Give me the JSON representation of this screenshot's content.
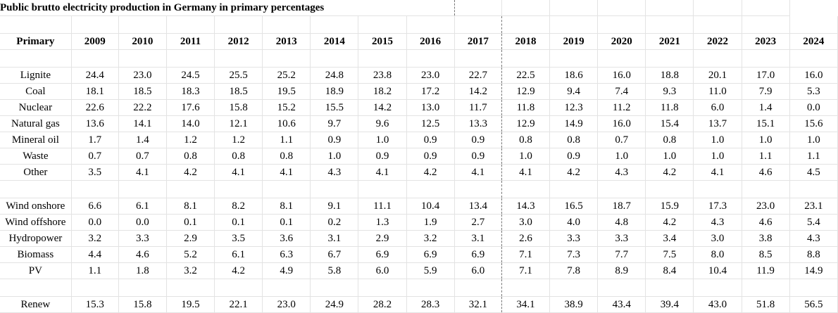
{
  "title": "Public brutto electricity production in Germany in primary percentages",
  "header": {
    "label": "Primary",
    "years": [
      "2009",
      "2010",
      "2011",
      "2012",
      "2013",
      "2014",
      "2015",
      "2016",
      "2017",
      "2018",
      "2019",
      "2020",
      "2021",
      "2022",
      "2023",
      "2024"
    ]
  },
  "group1": [
    {
      "label": "Lignite",
      "values": [
        "24.4",
        "23.0",
        "24.5",
        "25.5",
        "25.2",
        "24.8",
        "23.8",
        "23.0",
        "22.7",
        "22.5",
        "18.6",
        "16.0",
        "18.8",
        "20.1",
        "17.0",
        "16.0"
      ]
    },
    {
      "label": "Coal",
      "values": [
        "18.1",
        "18.5",
        "18.3",
        "18.5",
        "19.5",
        "18.9",
        "18.2",
        "17.2",
        "14.2",
        "12.9",
        "9.4",
        "7.4",
        "9.3",
        "11.0",
        "7.9",
        "5.3"
      ]
    },
    {
      "label": "Nuclear",
      "values": [
        "22.6",
        "22.2",
        "17.6",
        "15.8",
        "15.2",
        "15.5",
        "14.2",
        "13.0",
        "11.7",
        "11.8",
        "12.3",
        "11.2",
        "11.8",
        "6.0",
        "1.4",
        "0.0"
      ]
    },
    {
      "label": "Natural gas",
      "values": [
        "13.6",
        "14.1",
        "14.0",
        "12.1",
        "10.6",
        "9.7",
        "9.6",
        "12.5",
        "13.3",
        "12.9",
        "14.9",
        "16.0",
        "15.4",
        "13.7",
        "15.1",
        "15.6"
      ]
    },
    {
      "label": "Mineral oil",
      "values": [
        "1.7",
        "1.4",
        "1.2",
        "1.2",
        "1.1",
        "0.9",
        "1.0",
        "0.9",
        "0.9",
        "0.8",
        "0.8",
        "0.7",
        "0.8",
        "1.0",
        "1.0",
        "1.0"
      ]
    },
    {
      "label": "Waste",
      "values": [
        "0.7",
        "0.7",
        "0.8",
        "0.8",
        "0.8",
        "1.0",
        "0.9",
        "0.9",
        "0.9",
        "1.0",
        "0.9",
        "1.0",
        "1.0",
        "1.0",
        "1.1",
        "1.1"
      ]
    },
    {
      "label": "Other",
      "values": [
        "3.5",
        "4.1",
        "4.2",
        "4.1",
        "4.1",
        "4.3",
        "4.1",
        "4.2",
        "4.1",
        "4.1",
        "4.2",
        "4.3",
        "4.2",
        "4.1",
        "4.6",
        "4.5"
      ]
    }
  ],
  "group2": [
    {
      "label": "Wind onshore",
      "values": [
        "6.6",
        "6.1",
        "8.1",
        "8.2",
        "8.1",
        "9.1",
        "11.1",
        "10.4",
        "13.4",
        "14.3",
        "16.5",
        "18.7",
        "15.9",
        "17.3",
        "23.0",
        "23.1"
      ]
    },
    {
      "label": "Wind offshore",
      "values": [
        "0.0",
        "0.0",
        "0.1",
        "0.1",
        "0.1",
        "0.2",
        "1.3",
        "1.9",
        "2.7",
        "3.0",
        "4.0",
        "4.8",
        "4.2",
        "4.3",
        "4.6",
        "5.4"
      ]
    },
    {
      "label": "Hydropower",
      "values": [
        "3.2",
        "3.3",
        "2.9",
        "3.5",
        "3.6",
        "3.1",
        "2.9",
        "3.2",
        "3.1",
        "2.6",
        "3.3",
        "3.3",
        "3.4",
        "3.0",
        "3.8",
        "4.3"
      ]
    },
    {
      "label": "Biomass",
      "values": [
        "4.4",
        "4.6",
        "5.2",
        "6.1",
        "6.3",
        "6.7",
        "6.9",
        "6.9",
        "6.9",
        "7.1",
        "7.3",
        "7.7",
        "7.5",
        "8.0",
        "8.5",
        "8.8"
      ]
    },
    {
      "label": "PV",
      "values": [
        "1.1",
        "1.8",
        "3.2",
        "4.2",
        "4.9",
        "5.8",
        "6.0",
        "5.9",
        "6.0",
        "7.1",
        "7.8",
        "8.9",
        "8.4",
        "10.4",
        "11.9",
        "14.9"
      ]
    }
  ],
  "total": {
    "label": "Renew",
    "values": [
      "15.3",
      "15.8",
      "19.5",
      "22.1",
      "23.0",
      "24.9",
      "28.2",
      "28.3",
      "32.1",
      "34.1",
      "38.9",
      "43.4",
      "39.4",
      "43.0",
      "51.8",
      "56.5"
    ]
  }
}
